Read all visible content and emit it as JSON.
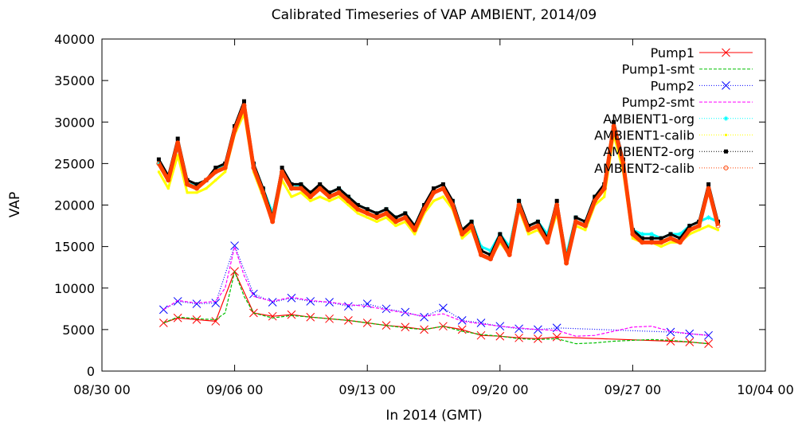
{
  "chart_data": {
    "type": "line",
    "title": "Calibrated Timeseries of VAP AMBIENT, 2014/09",
    "xlabel": "In 2014 (GMT)",
    "ylabel": "VAP",
    "x_tick_labels": [
      "08/30 00",
      "09/06 00",
      "09/13 00",
      "09/20 00",
      "09/27 00",
      "10/04 00"
    ],
    "y_tick_labels": [
      "0",
      "5000",
      "10000",
      "15000",
      "20000",
      "25000",
      "30000",
      "35000",
      "40000"
    ],
    "xlim": [
      "2014-08-30 00:00",
      "2014-10-04 00:00"
    ],
    "ylim": [
      0,
      40000
    ],
    "grid": false,
    "legend_position": "top-right",
    "series": [
      {
        "name": "Pump1",
        "color": "#ff0000",
        "marker": "x",
        "line": "solid",
        "x": [
          "2014-09-02 06:00",
          "2014-09-03 00:00",
          "2014-09-04 00:00",
          "2014-09-05 00:00",
          "2014-09-06 00:00",
          "2014-09-07 00:00",
          "2014-09-08 00:00",
          "2014-09-09 00:00",
          "2014-09-10 00:00",
          "2014-09-11 00:00",
          "2014-09-12 00:00",
          "2014-09-13 00:00",
          "2014-09-14 00:00",
          "2014-09-15 00:00",
          "2014-09-16 00:00",
          "2014-09-17 00:00",
          "2014-09-18 00:00",
          "2014-09-19 00:00",
          "2014-09-20 00:00",
          "2014-09-21 00:00",
          "2014-09-22 00:00",
          "2014-09-23 00:00",
          "2014-09-29 00:00",
          "2014-09-30 00:00",
          "2014-10-01 00:00"
        ],
        "values": [
          5800,
          6400,
          6200,
          6000,
          12000,
          7000,
          6600,
          6800,
          6500,
          6300,
          6100,
          5800,
          5500,
          5300,
          5000,
          5400,
          5000,
          4300,
          4200,
          4000,
          3900,
          4100,
          3600,
          3500,
          3300
        ]
      },
      {
        "name": "Pump1-smt",
        "color": "#00c000",
        "marker": "none",
        "line": "dashed",
        "x": [
          "2014-09-02 06:00",
          "2014-09-03 00:00",
          "2014-09-04 00:00",
          "2014-09-05 00:00",
          "2014-09-05 12:00",
          "2014-09-06 00:00",
          "2014-09-06 12:00",
          "2014-09-07 00:00",
          "2014-09-08 00:00",
          "2014-09-09 00:00",
          "2014-09-10 00:00",
          "2014-09-11 00:00",
          "2014-09-12 00:00",
          "2014-09-13 00:00",
          "2014-09-14 00:00",
          "2014-09-15 00:00",
          "2014-09-16 00:00",
          "2014-09-17 00:00",
          "2014-09-18 00:00",
          "2014-09-19 00:00",
          "2014-09-20 00:00",
          "2014-09-21 00:00",
          "2014-09-22 00:00",
          "2014-09-23 00:00",
          "2014-09-24 00:00",
          "2014-09-25 00:00",
          "2014-09-26 00:00",
          "2014-09-27 00:00",
          "2014-09-28 00:00",
          "2014-09-29 00:00",
          "2014-09-30 00:00",
          "2014-10-01 00:00"
        ],
        "values": [
          5800,
          6500,
          6300,
          6200,
          7000,
          12000,
          9000,
          7000,
          6400,
          6700,
          6500,
          6300,
          6100,
          5800,
          5500,
          5200,
          5000,
          5400,
          4800,
          4400,
          4200,
          3900,
          3800,
          3900,
          3300,
          3400,
          3600,
          3700,
          3800,
          3700,
          3500,
          3300
        ]
      },
      {
        "name": "Pump2",
        "color": "#0000ff",
        "marker": "x",
        "line": "dotted",
        "x": [
          "2014-09-02 06:00",
          "2014-09-03 00:00",
          "2014-09-04 00:00",
          "2014-09-05 00:00",
          "2014-09-06 00:00",
          "2014-09-07 00:00",
          "2014-09-08 00:00",
          "2014-09-09 00:00",
          "2014-09-10 00:00",
          "2014-09-11 00:00",
          "2014-09-12 00:00",
          "2014-09-13 00:00",
          "2014-09-14 00:00",
          "2014-09-15 00:00",
          "2014-09-16 00:00",
          "2014-09-17 00:00",
          "2014-09-18 00:00",
          "2014-09-19 00:00",
          "2014-09-20 00:00",
          "2014-09-21 00:00",
          "2014-09-22 00:00",
          "2014-09-23 00:00",
          "2014-09-29 00:00",
          "2014-09-30 00:00",
          "2014-10-01 00:00"
        ],
        "values": [
          7400,
          8400,
          8100,
          8200,
          15100,
          9300,
          8300,
          8800,
          8400,
          8300,
          7800,
          8100,
          7500,
          7100,
          6500,
          7600,
          6100,
          5800,
          5400,
          5100,
          5000,
          5200,
          4700,
          4500,
          4300
        ]
      },
      {
        "name": "Pump2-smt",
        "color": "#ff00ff",
        "marker": "none",
        "line": "dashed",
        "x": [
          "2014-09-02 06:00",
          "2014-09-03 00:00",
          "2014-09-04 00:00",
          "2014-09-05 00:00",
          "2014-09-05 12:00",
          "2014-09-06 00:00",
          "2014-09-06 12:00",
          "2014-09-07 00:00",
          "2014-09-08 00:00",
          "2014-09-09 00:00",
          "2014-09-10 00:00",
          "2014-09-11 00:00",
          "2014-09-12 00:00",
          "2014-09-13 00:00",
          "2014-09-14 00:00",
          "2014-09-15 00:00",
          "2014-09-16 00:00",
          "2014-09-17 00:00",
          "2014-09-18 00:00",
          "2014-09-19 00:00",
          "2014-09-20 00:00",
          "2014-09-21 00:00",
          "2014-09-22 00:00",
          "2014-09-23 00:00",
          "2014-09-24 00:00",
          "2014-09-25 00:00",
          "2014-09-26 00:00",
          "2014-09-27 00:00",
          "2014-09-28 00:00",
          "2014-09-29 00:00",
          "2014-09-30 00:00",
          "2014-10-01 00:00"
        ],
        "values": [
          7400,
          8500,
          8200,
          8400,
          10000,
          15000,
          11500,
          9000,
          8400,
          8900,
          8500,
          8300,
          8000,
          7800,
          7400,
          7000,
          6600,
          6900,
          6000,
          5700,
          5400,
          5200,
          5000,
          4900,
          4200,
          4300,
          4800,
          5300,
          5400,
          4800,
          4500,
          4300
        ]
      },
      {
        "name": "AMBIENT1-org",
        "color": "#00ffff",
        "marker": "*",
        "line": "dotted",
        "x": [
          "2014-09-02 00:00",
          "2014-09-02 12:00",
          "2014-09-03 00:00",
          "2014-09-03 12:00",
          "2014-09-04 00:00",
          "2014-09-04 12:00",
          "2014-09-05 00:00",
          "2014-09-05 12:00",
          "2014-09-06 00:00",
          "2014-09-06 12:00",
          "2014-09-07 00:00",
          "2014-09-07 12:00",
          "2014-09-08 00:00",
          "2014-09-08 12:00",
          "2014-09-09 00:00",
          "2014-09-09 12:00",
          "2014-09-10 00:00",
          "2014-09-10 12:00",
          "2014-09-11 00:00",
          "2014-09-11 12:00",
          "2014-09-12 00:00",
          "2014-09-12 12:00",
          "2014-09-13 00:00",
          "2014-09-13 12:00",
          "2014-09-14 00:00",
          "2014-09-14 12:00",
          "2014-09-15 00:00",
          "2014-09-15 12:00",
          "2014-09-16 00:00",
          "2014-09-16 12:00",
          "2014-09-17 00:00",
          "2014-09-17 12:00",
          "2014-09-18 00:00",
          "2014-09-18 12:00",
          "2014-09-19 00:00",
          "2014-09-19 12:00",
          "2014-09-20 00:00",
          "2014-09-20 12:00",
          "2014-09-21 00:00",
          "2014-09-21 12:00",
          "2014-09-22 00:00",
          "2014-09-22 12:00",
          "2014-09-23 00:00",
          "2014-09-23 12:00",
          "2014-09-24 00:00",
          "2014-09-24 12:00",
          "2014-09-25 00:00",
          "2014-09-25 12:00",
          "2014-09-26 00:00",
          "2014-09-26 12:00",
          "2014-09-27 00:00",
          "2014-09-27 12:00",
          "2014-09-28 00:00",
          "2014-09-28 12:00",
          "2014-09-29 00:00",
          "2014-09-29 12:00",
          "2014-09-30 00:00",
          "2014-09-30 12:00",
          "2014-10-01 00:00",
          "2014-10-01 12:00"
        ],
        "values": [
          25000,
          23000,
          27000,
          22500,
          22500,
          23000,
          24000,
          25000,
          29000,
          31500,
          25000,
          22000,
          19000,
          24000,
          22000,
          22500,
          21500,
          22000,
          21500,
          22000,
          21000,
          20000,
          19500,
          19000,
          19500,
          18500,
          19000,
          17500,
          20000,
          21500,
          22000,
          20500,
          17000,
          18000,
          15000,
          14500,
          16500,
          15000,
          20500,
          17500,
          18000,
          16500,
          20000,
          14000,
          18500,
          18000,
          21000,
          22000,
          29000,
          25000,
          17000,
          16500,
          16500,
          16000,
          16500,
          16500,
          17500,
          18000,
          18500,
          18000
        ]
      },
      {
        "name": "AMBIENT1-calib",
        "color": "#ffff00",
        "marker": "point",
        "line": "dotted",
        "x": [
          "2014-09-02 00:00",
          "2014-09-02 12:00",
          "2014-09-03 00:00",
          "2014-09-03 12:00",
          "2014-09-04 00:00",
          "2014-09-04 12:00",
          "2014-09-05 00:00",
          "2014-09-05 12:00",
          "2014-09-06 00:00",
          "2014-09-06 12:00",
          "2014-09-07 00:00",
          "2014-09-07 12:00",
          "2014-09-08 00:00",
          "2014-09-08 12:00",
          "2014-09-09 00:00",
          "2014-09-09 12:00",
          "2014-09-10 00:00",
          "2014-09-10 12:00",
          "2014-09-11 00:00",
          "2014-09-11 12:00",
          "2014-09-12 00:00",
          "2014-09-12 12:00",
          "2014-09-13 00:00",
          "2014-09-13 12:00",
          "2014-09-14 00:00",
          "2014-09-14 12:00",
          "2014-09-15 00:00",
          "2014-09-15 12:00",
          "2014-09-16 00:00",
          "2014-09-16 12:00",
          "2014-09-17 00:00",
          "2014-09-17 12:00",
          "2014-09-18 00:00",
          "2014-09-18 12:00",
          "2014-09-19 00:00",
          "2014-09-19 12:00",
          "2014-09-20 00:00",
          "2014-09-20 12:00",
          "2014-09-21 00:00",
          "2014-09-21 12:00",
          "2014-09-22 00:00",
          "2014-09-22 12:00",
          "2014-09-23 00:00",
          "2014-09-23 12:00",
          "2014-09-24 00:00",
          "2014-09-24 12:00",
          "2014-09-25 00:00",
          "2014-09-25 12:00",
          "2014-09-26 00:00",
          "2014-09-26 12:00",
          "2014-09-27 00:00",
          "2014-09-27 12:00",
          "2014-09-28 00:00",
          "2014-09-28 12:00",
          "2014-09-29 00:00",
          "2014-09-29 12:00",
          "2014-09-30 00:00",
          "2014-09-30 12:00",
          "2014-10-01 00:00",
          "2014-10-01 12:00"
        ],
        "values": [
          24000,
          22000,
          26000,
          21500,
          21500,
          22000,
          23000,
          24000,
          28500,
          31000,
          24000,
          21000,
          18000,
          23000,
          21000,
          21500,
          20500,
          21000,
          20500,
          21000,
          20000,
          19000,
          18500,
          18000,
          18500,
          17500,
          18000,
          16500,
          19000,
          20500,
          21000,
          19500,
          16000,
          17000,
          14000,
          13500,
          15500,
          14000,
          19500,
          16500,
          17000,
          15500,
          19000,
          13000,
          17500,
          17000,
          20000,
          21000,
          28500,
          24000,
          16000,
          15500,
          15500,
          15000,
          15500,
          15500,
          16500,
          17000,
          17500,
          17000
        ]
      },
      {
        "name": "AMBIENT2-org",
        "color": "#000000",
        "marker": "square",
        "line": "dotted",
        "x": [
          "2014-09-02 00:00",
          "2014-09-02 12:00",
          "2014-09-03 00:00",
          "2014-09-03 12:00",
          "2014-09-04 00:00",
          "2014-09-04 12:00",
          "2014-09-05 00:00",
          "2014-09-05 12:00",
          "2014-09-06 00:00",
          "2014-09-06 12:00",
          "2014-09-07 00:00",
          "2014-09-07 12:00",
          "2014-09-08 00:00",
          "2014-09-08 12:00",
          "2014-09-09 00:00",
          "2014-09-09 12:00",
          "2014-09-10 00:00",
          "2014-09-10 12:00",
          "2014-09-11 00:00",
          "2014-09-11 12:00",
          "2014-09-12 00:00",
          "2014-09-12 12:00",
          "2014-09-13 00:00",
          "2014-09-13 12:00",
          "2014-09-14 00:00",
          "2014-09-14 12:00",
          "2014-09-15 00:00",
          "2014-09-15 12:00",
          "2014-09-16 00:00",
          "2014-09-16 12:00",
          "2014-09-17 00:00",
          "2014-09-17 12:00",
          "2014-09-18 00:00",
          "2014-09-18 12:00",
          "2014-09-19 00:00",
          "2014-09-19 12:00",
          "2014-09-20 00:00",
          "2014-09-20 12:00",
          "2014-09-21 00:00",
          "2014-09-21 12:00",
          "2014-09-22 00:00",
          "2014-09-22 12:00",
          "2014-09-23 00:00",
          "2014-09-23 12:00",
          "2014-09-24 00:00",
          "2014-09-24 12:00",
          "2014-09-25 00:00",
          "2014-09-25 12:00",
          "2014-09-26 00:00",
          "2014-09-26 12:00",
          "2014-09-27 00:00",
          "2014-09-27 12:00",
          "2014-09-28 00:00",
          "2014-09-28 12:00",
          "2014-09-29 00:00",
          "2014-09-29 12:00",
          "2014-09-30 00:00",
          "2014-09-30 12:00",
          "2014-10-01 00:00",
          "2014-10-01 12:00"
        ],
        "values": [
          25500,
          23500,
          28000,
          23000,
          22500,
          23000,
          24500,
          25000,
          29500,
          32500,
          25000,
          22000,
          18500,
          24500,
          22500,
          22500,
          21500,
          22500,
          21500,
          22000,
          21000,
          20000,
          19500,
          19000,
          19500,
          18500,
          19000,
          17500,
          20000,
          22000,
          22500,
          20500,
          17000,
          18000,
          14500,
          14000,
          16500,
          14500,
          20500,
          17500,
          18000,
          16000,
          20500,
          13500,
          18500,
          18000,
          21000,
          22500,
          30000,
          25500,
          17000,
          16000,
          16000,
          16000,
          16500,
          16000,
          17500,
          18000,
          22500,
          18000
        ]
      },
      {
        "name": "AMBIENT2-calib",
        "color": "#ff4000",
        "marker": "o",
        "line": "dotted",
        "x": [
          "2014-09-02 00:00",
          "2014-09-02 12:00",
          "2014-09-03 00:00",
          "2014-09-03 12:00",
          "2014-09-04 00:00",
          "2014-09-04 12:00",
          "2014-09-05 00:00",
          "2014-09-05 12:00",
          "2014-09-06 00:00",
          "2014-09-06 12:00",
          "2014-09-07 00:00",
          "2014-09-07 12:00",
          "2014-09-08 00:00",
          "2014-09-08 12:00",
          "2014-09-09 00:00",
          "2014-09-09 12:00",
          "2014-09-10 00:00",
          "2014-09-10 12:00",
          "2014-09-11 00:00",
          "2014-09-11 12:00",
          "2014-09-12 00:00",
          "2014-09-12 12:00",
          "2014-09-13 00:00",
          "2014-09-13 12:00",
          "2014-09-14 00:00",
          "2014-09-14 12:00",
          "2014-09-15 00:00",
          "2014-09-15 12:00",
          "2014-09-16 00:00",
          "2014-09-16 12:00",
          "2014-09-17 00:00",
          "2014-09-17 12:00",
          "2014-09-18 00:00",
          "2014-09-18 12:00",
          "2014-09-19 00:00",
          "2014-09-19 12:00",
          "2014-09-20 00:00",
          "2014-09-20 12:00",
          "2014-09-21 00:00",
          "2014-09-21 12:00",
          "2014-09-22 00:00",
          "2014-09-22 12:00",
          "2014-09-23 00:00",
          "2014-09-23 12:00",
          "2014-09-24 00:00",
          "2014-09-24 12:00",
          "2014-09-25 00:00",
          "2014-09-25 12:00",
          "2014-09-26 00:00",
          "2014-09-26 12:00",
          "2014-09-27 00:00",
          "2014-09-27 12:00",
          "2014-09-28 00:00",
          "2014-09-28 12:00",
          "2014-09-29 00:00",
          "2014-09-29 12:00",
          "2014-09-30 00:00",
          "2014-09-30 12:00",
          "2014-10-01 00:00",
          "2014-10-01 12:00"
        ],
        "values": [
          25000,
          23000,
          27500,
          22500,
          22000,
          23000,
          24000,
          24500,
          29000,
          32000,
          24500,
          21500,
          18000,
          24000,
          22000,
          22000,
          21000,
          22000,
          21000,
          21500,
          20500,
          19500,
          19000,
          18500,
          19000,
          18000,
          18500,
          17000,
          19500,
          21500,
          22000,
          20000,
          16500,
          17500,
          14000,
          13500,
          16000,
          14000,
          20000,
          17000,
          17500,
          15500,
          20000,
          13000,
          18000,
          17500,
          20500,
          22000,
          29500,
          25000,
          16500,
          15500,
          15500,
          15500,
          16000,
          15500,
          17000,
          17500,
          22000,
          17500
        ]
      }
    ]
  }
}
